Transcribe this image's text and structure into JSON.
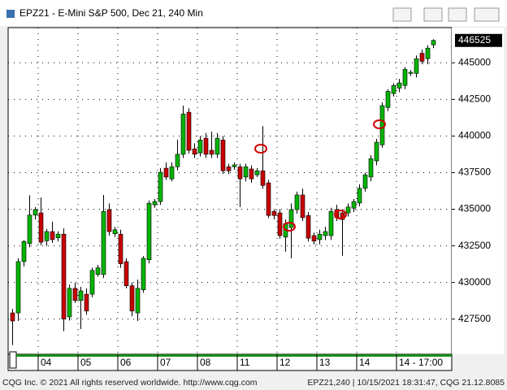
{
  "window": {
    "title": "EPZ21 - E-Mini S&P 500, Dec 21, 240 Min"
  },
  "chart_data": {
    "type": "candlestick",
    "categories": [
      null,
      null,
      null,
      null,
      null,
      "04",
      null,
      null,
      null,
      null,
      null,
      null,
      "05",
      null,
      null,
      null,
      null,
      null,
      null,
      "06",
      null,
      null,
      null,
      null,
      null,
      null,
      "07",
      null,
      null,
      null,
      null,
      null,
      null,
      "08",
      null,
      null,
      null,
      null,
      null,
      null,
      "11",
      null,
      null,
      null,
      null,
      null,
      null,
      "12",
      null,
      null,
      null,
      null,
      null,
      null,
      "13",
      null,
      null,
      null,
      null,
      null,
      null,
      "14",
      null,
      null,
      null,
      null,
      null,
      null,
      "14 - 17:00",
      null,
      null,
      null,
      null,
      null,
      null
    ],
    "open": [
      427925,
      427925,
      431425,
      432650,
      434600,
      434750,
      432850,
      433475,
      433050,
      433300,
      427650,
      429600,
      428775,
      429200,
      429200,
      430550,
      430550,
      434975,
      433325,
      433300,
      431425,
      429775,
      427925,
      429500,
      431550,
      435300,
      435525,
      437800,
      437075,
      437900,
      438750,
      441625,
      439125,
      438850,
      439850,
      439025,
      438750,
      439725,
      437900,
      437900,
      437900,
      437200,
      437750,
      437350,
      437625,
      436800,
      434850,
      434750,
      433100,
      433750,
      434975,
      435975,
      434575,
      433200,
      432925,
      433200,
      433200,
      434975,
      434750,
      434750,
      435075,
      435425,
      436425,
      437200,
      438300,
      439400,
      441950,
      442900,
      443275,
      443450,
      444275,
      444275,
      445650,
      445275,
      446225
    ],
    "high": [
      428200,
      431650,
      432900,
      435950,
      435150,
      435800,
      433650,
      434150,
      433500,
      433700,
      429850,
      430000,
      429700,
      429600,
      431000,
      431200,
      435975,
      435400,
      433800,
      433600,
      431650,
      430000,
      430200,
      431800,
      435600,
      435700,
      437800,
      438200,
      438200,
      439750,
      442075,
      441900,
      439500,
      440000,
      440200,
      440300,
      440200,
      440000,
      438100,
      438200,
      438100,
      438100,
      438000,
      437800,
      440675,
      437000,
      435000,
      435000,
      434300,
      435400,
      436200,
      436400,
      434800,
      433400,
      433600,
      433800,
      435100,
      435300,
      435000,
      435400,
      435700,
      436700,
      437500,
      438700,
      439800,
      442300,
      443200,
      443600,
      443900,
      444700,
      444500,
      445500,
      445900,
      446200,
      446600
    ],
    "low": [
      425725,
      427375,
      431100,
      432400,
      434300,
      432550,
      432500,
      432700,
      432800,
      426675,
      427400,
      428600,
      426825,
      427800,
      429000,
      430400,
      430300,
      433200,
      433100,
      431000,
      429600,
      427700,
      427375,
      429300,
      431300,
      435100,
      435300,
      437000,
      436900,
      437650,
      438500,
      438800,
      438500,
      438600,
      438500,
      438500,
      438500,
      437400,
      437400,
      437700,
      435150,
      436900,
      436800,
      437200,
      436400,
      434400,
      434300,
      433000,
      432100,
      431650,
      434700,
      434200,
      432800,
      432600,
      432600,
      432900,
      432900,
      434200,
      431825,
      434500,
      434800,
      435200,
      436200,
      436900,
      438000,
      439200,
      441700,
      442700,
      443000,
      443200,
      444100,
      444000,
      444900,
      444900,
      446000
    ],
    "close": [
      427375,
      431425,
      432800,
      434600,
      434975,
      432750,
      433475,
      432925,
      433300,
      427500,
      429600,
      428775,
      429425,
      428050,
      430825,
      431000,
      434850,
      433475,
      433600,
      431275,
      429775,
      428050,
      429600,
      431650,
      435400,
      435525,
      437525,
      437200,
      437900,
      438750,
      441500,
      439025,
      438750,
      439725,
      438750,
      438750,
      439850,
      437625,
      437625,
      438025,
      437075,
      437900,
      437075,
      437625,
      436625,
      434575,
      434575,
      433200,
      434025,
      434975,
      435975,
      434425,
      433025,
      432825,
      433300,
      433475,
      434850,
      434425,
      434300,
      435150,
      435525,
      436425,
      437350,
      438450,
      439575,
      442075,
      443050,
      443450,
      443625,
      444550,
      444350,
      445275,
      445100,
      446000,
      446525
    ],
    "up_color": "#00b400",
    "down_color": "#c80000",
    "ylim": [
      425100,
      447400
    ],
    "yticks": [
      427500,
      430000,
      432500,
      435000,
      437500,
      440000,
      442500,
      445000
    ],
    "grid": true,
    "last_price": 446525
  },
  "footer": {
    "left": "CQG Inc. © 2021 All rights reserved worldwide. http://www.cqg.com",
    "right": "EPZ21,240 | 10/15/2021 18:31:47, CQG 21.12.8085"
  }
}
